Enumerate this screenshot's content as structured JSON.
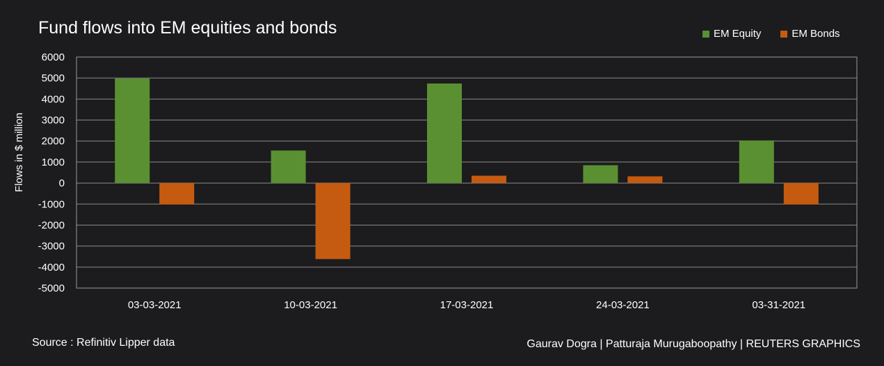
{
  "chart_data": {
    "type": "bar",
    "title": "Fund flows into EM equities and bonds",
    "xlabel": "",
    "ylabel": "Flows in $ million",
    "ylim": [
      -5000,
      6000
    ],
    "yticks": [
      "6000",
      "5000",
      "4000",
      "3000",
      "2000",
      "1000",
      "0",
      "-1000",
      "-2000",
      "-3000",
      "-4000",
      "-5000"
    ],
    "categories": [
      "03-03-2021",
      "10-03-2021",
      "17-03-2021",
      "24-03-2021",
      "03-31-2021"
    ],
    "series": [
      {
        "name": "EM Equity",
        "color": "#5a8f32",
        "values": [
          4980,
          1550,
          4740,
          850,
          2030
        ]
      },
      {
        "name": "EM Bonds",
        "color": "#c55a11",
        "values": [
          -1020,
          -3620,
          350,
          320,
          -1020
        ]
      }
    ],
    "grid": true,
    "legend_position": "top-right"
  },
  "footer": {
    "source": "Source : Refinitiv Lipper data",
    "credit": "Gaurav Dogra | Patturaja Murugaboopathy | REUTERS GRAPHICS"
  }
}
